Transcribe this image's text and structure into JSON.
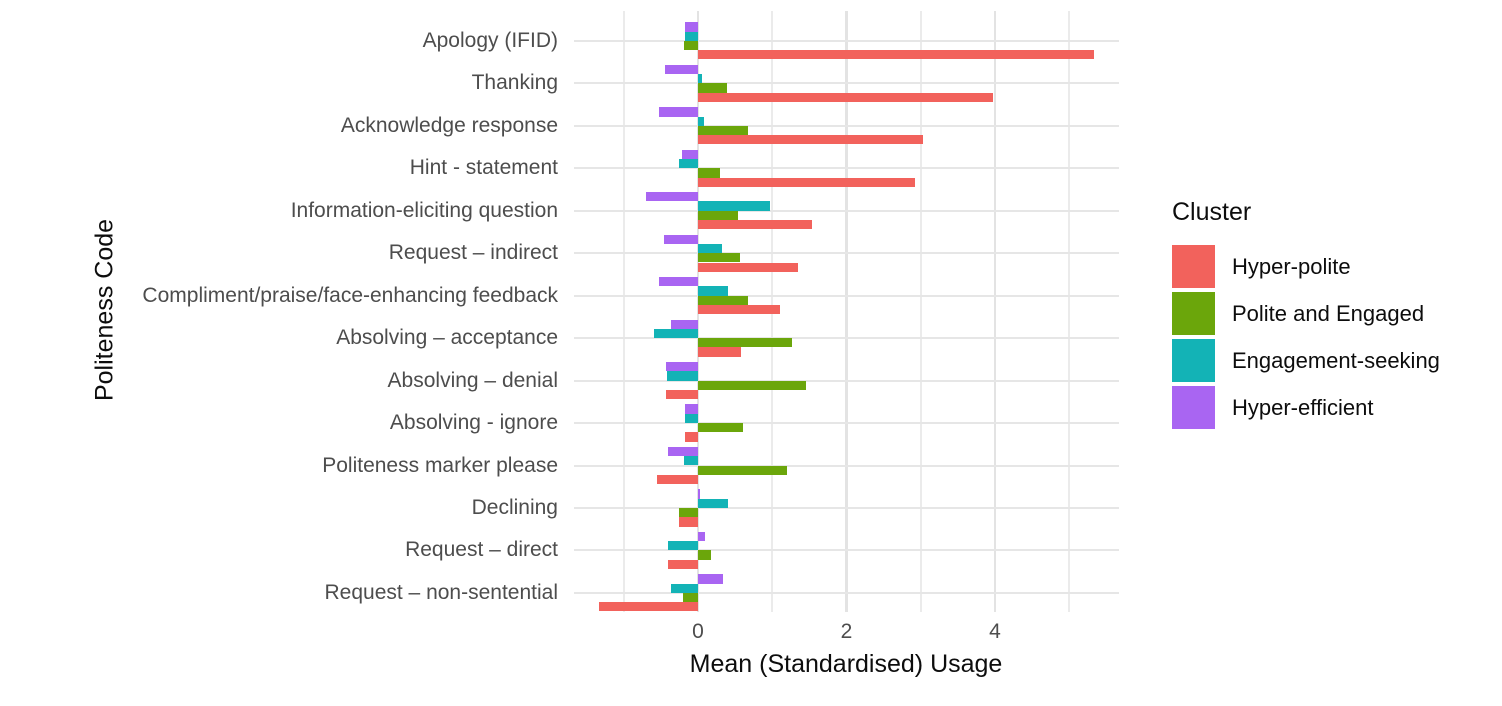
{
  "chart_data": {
    "type": "bar",
    "orientation": "horizontal",
    "title": "",
    "xlabel": "Mean (Standardised) Usage",
    "ylabel": "Politeness Code",
    "x_ticks": [
      0,
      2,
      4
    ],
    "x_gridlines": [
      -1,
      0,
      1,
      2,
      3,
      4,
      5
    ],
    "xlim": [
      -1.67,
      5.67
    ],
    "grid": true,
    "categories": [
      "Apology (IFID)",
      "Thanking",
      "Acknowledge response",
      "Hint - statement",
      "Information-eliciting question",
      "Request – indirect",
      "Compliment/praise/face-enhancing feedback",
      "Absolving – acceptance",
      "Absolving – denial",
      "Absolving - ignore",
      "Politeness marker please",
      "Declining",
      "Request – direct",
      "Request – non-sentential"
    ],
    "series": [
      {
        "name": "Hyper-polite",
        "color": "#f2625c",
        "values": [
          5.34,
          3.97,
          3.03,
          2.92,
          1.53,
          1.35,
          1.11,
          0.58,
          -0.43,
          -0.18,
          -0.55,
          -0.25,
          -0.41,
          -1.34
        ]
      },
      {
        "name": "Polite and Engaged",
        "color": "#6ba60b",
        "values": [
          -0.19,
          0.39,
          0.67,
          0.29,
          0.54,
          0.57,
          0.68,
          1.26,
          1.46,
          0.6,
          1.2,
          -0.25,
          0.18,
          -0.2
        ]
      },
      {
        "name": "Engagement-seeking",
        "color": "#13b3b6",
        "values": [
          -0.17,
          0.06,
          0.08,
          -0.25,
          0.97,
          0.32,
          0.4,
          -0.59,
          -0.42,
          -0.18,
          -0.19,
          0.41,
          -0.4,
          -0.36
        ]
      },
      {
        "name": "Hyper-efficient",
        "color": "#a965f2",
        "values": [
          -0.18,
          -0.45,
          -0.53,
          -0.21,
          -0.7,
          -0.46,
          -0.52,
          -0.36,
          -0.43,
          -0.18,
          -0.41,
          0.02,
          0.1,
          0.34
        ]
      }
    ],
    "bar_order_top_to_bottom": [
      "Hyper-efficient",
      "Engagement-seeking",
      "Polite and Engaged",
      "Hyper-polite"
    ],
    "legend": {
      "title": "Cluster",
      "position": "right",
      "entries": [
        "Hyper-polite",
        "Polite and Engaged",
        "Engagement-seeking",
        "Hyper-efficient"
      ]
    }
  }
}
